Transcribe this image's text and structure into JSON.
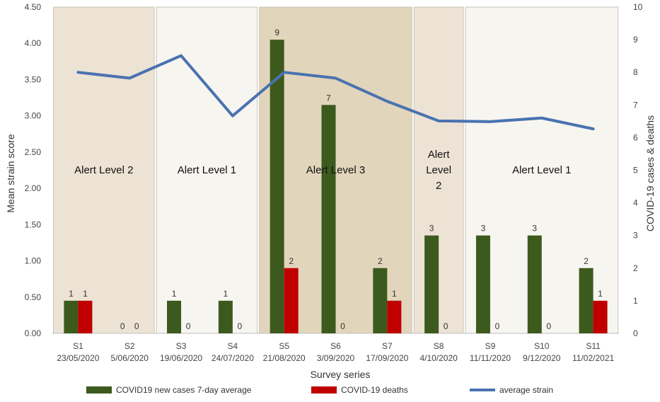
{
  "chart_data": {
    "type": "bar",
    "xlabel": "Survey series",
    "ylabel_left": "Mean strain score",
    "ylabel_right": "COVID-19 cases & deaths",
    "ylim_left": [
      0,
      4.5
    ],
    "ylim_right": [
      0,
      10
    ],
    "left_ticks": [
      "0.00",
      "0.50",
      "1.00",
      "1.50",
      "2.00",
      "2.50",
      "3.00",
      "3.50",
      "4.00",
      "4.50"
    ],
    "right_ticks": [
      "0",
      "1",
      "2",
      "3",
      "4",
      "5",
      "6",
      "7",
      "8",
      "9",
      "10"
    ],
    "categories": [
      {
        "survey": "S1",
        "date": "23/05/2020"
      },
      {
        "survey": "S2",
        "date": "5/06/2020"
      },
      {
        "survey": "S3",
        "date": "19/06/2020"
      },
      {
        "survey": "S4",
        "date": "24/07/2020"
      },
      {
        "survey": "S5",
        "date": "21/08/2020"
      },
      {
        "survey": "S6",
        "date": "3/09/2020"
      },
      {
        "survey": "S7",
        "date": "17/09/2020"
      },
      {
        "survey": "S8",
        "date": "4/10/2020"
      },
      {
        "survey": "S9",
        "date": "11/11/2020"
      },
      {
        "survey": "S10",
        "date": "9/12/2020"
      },
      {
        "survey": "S11",
        "date": "11/02/2021"
      }
    ],
    "series": [
      {
        "name": "COVID19 new cases 7-day average",
        "axis": "right",
        "kind": "bar",
        "color": "#3d5a1e",
        "values": [
          1,
          null,
          1,
          1,
          9,
          7,
          2,
          3,
          3,
          3,
          2
        ],
        "labels": [
          "1",
          "",
          "1",
          "1",
          "9",
          "7",
          "2",
          "3",
          "3",
          "3",
          "2"
        ]
      },
      {
        "name": "COVID-19 deaths",
        "axis": "right",
        "kind": "bar",
        "color": "#c00000",
        "values": [
          1,
          0,
          0,
          0,
          2,
          0,
          1,
          0,
          0,
          0,
          1
        ],
        "labels": [
          "1",
          "0",
          "0",
          "0",
          "2",
          "0",
          "1",
          "0",
          "0",
          "0",
          "1"
        ]
      },
      {
        "name": "average strain",
        "axis": "left",
        "kind": "line",
        "color": "#4a72b0",
        "values": [
          3.6,
          3.52,
          3.83,
          3.0,
          3.6,
          3.52,
          3.2,
          2.93,
          2.92,
          2.97,
          2.82
        ]
      }
    ],
    "extra_zero_label": "0",
    "zones": [
      {
        "label_lines": [
          "Alert Level 2"
        ],
        "from": 0,
        "to": 1,
        "fill": "#ede3d4"
      },
      {
        "label_lines": [
          "Alert Level 1"
        ],
        "from": 2,
        "to": 3,
        "fill": "#f7f5f0"
      },
      {
        "label_lines": [
          "Alert Level 3"
        ],
        "from": 4,
        "to": 6,
        "fill": "#e1d5bb"
      },
      {
        "label_lines": [
          "Alert",
          "Level",
          "2"
        ],
        "from": 7,
        "to": 7,
        "fill": "#ede3d4"
      },
      {
        "label_lines": [
          "Alert Level 1"
        ],
        "from": 8,
        "to": 10,
        "fill": "#f7f5f0"
      }
    ],
    "legend_position": "bottom"
  }
}
